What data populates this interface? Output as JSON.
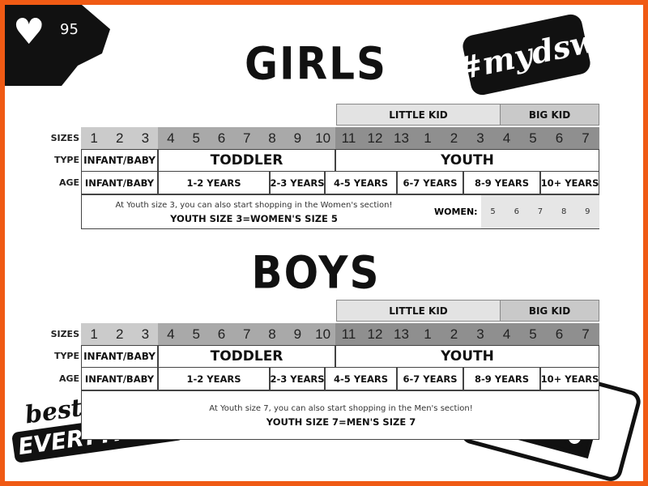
{
  "badge": {
    "icon": "heart-icon",
    "count": "95"
  },
  "hashtag": "#mydsw",
  "logo": {
    "line1": "best of",
    "line2": "EVERYTHING"
  },
  "row_labels": {
    "sizes": "SIZES",
    "type": "TYPE",
    "age": "AGE"
  },
  "colors": {
    "border": "#f05a14",
    "infant": "#cbcbcb",
    "toddler": "#a9a9a9",
    "youth": "#8f8f8f"
  },
  "sections": [
    {
      "title": "GIRLS",
      "groups": [
        "LITTLE KID",
        "BIG KID"
      ],
      "sizes": [
        "1",
        "2",
        "3",
        "4",
        "5",
        "6",
        "7",
        "8",
        "9",
        "10",
        "11",
        "12",
        "13",
        "1",
        "2",
        "3",
        "4",
        "5",
        "6",
        "7"
      ],
      "types": [
        "INFANT/BABY",
        "TODDLER",
        "YOUTH"
      ],
      "ages": [
        "INFANT/BABY",
        "1-2 YEARS",
        "2-3 YEARS",
        "4-5 YEARS",
        "6-7 YEARS",
        "8-9 YEARS",
        "10+ YEARS"
      ],
      "note": "At Youth size 3, you can also start shopping in the Women's section!",
      "equivalence": "YOUTH SIZE 3=WOMEN'S SIZE 5",
      "women_label": "WOMEN:",
      "women_sizes": [
        "5",
        "6",
        "7",
        "8",
        "9"
      ]
    },
    {
      "title": "BOYS",
      "groups": [
        "LITTLE KID",
        "BIG KID"
      ],
      "sizes": [
        "1",
        "2",
        "3",
        "4",
        "5",
        "6",
        "7",
        "8",
        "9",
        "10",
        "11",
        "12",
        "13",
        "1",
        "2",
        "3",
        "4",
        "5",
        "6",
        "7"
      ],
      "types": [
        "INFANT/BABY",
        "TODDLER",
        "YOUTH"
      ],
      "ages": [
        "INFANT/BABY",
        "1-2 YEARS",
        "2-3 YEARS",
        "4-5 YEARS",
        "6-7 YEARS",
        "8-9 YEARS",
        "10+ YEARS"
      ],
      "note": "At Youth size 7, you can also start shopping in the Men's section!",
      "equivalence": "YOUTH SIZE 7=MEN'S SIZE 7"
    }
  ]
}
